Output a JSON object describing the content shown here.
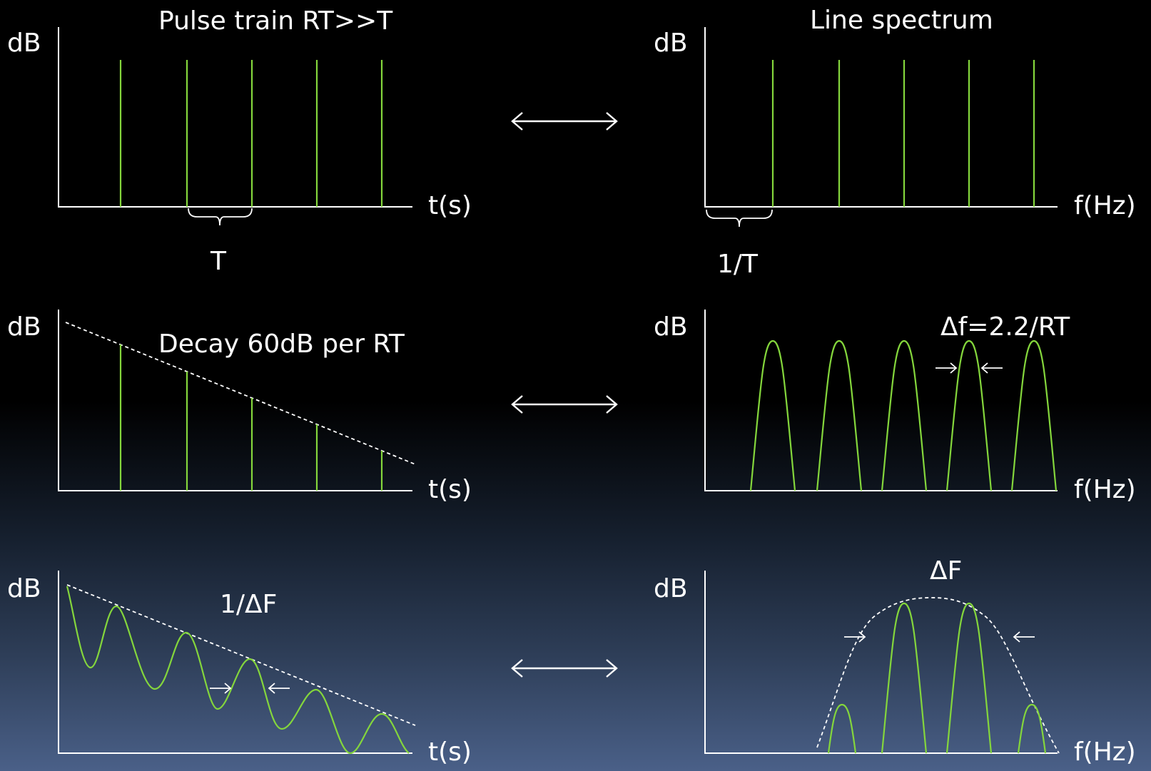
{
  "panels": {
    "pulse_train": {
      "title": "Pulse train RT>>T",
      "y_label": "dB",
      "x_label": "t(s)",
      "period_label": "T"
    },
    "line_spectrum": {
      "title": "Line spectrum",
      "y_label": "dB",
      "x_label": "f(Hz)",
      "spacing_label": "1/T"
    },
    "decay": {
      "title": "Decay 60dB per RT",
      "y_label": "dB",
      "x_label": "t(s)"
    },
    "mode_spectrum": {
      "title": "Δf=2.2/RT",
      "y_label": "dB",
      "x_label": "f(Hz)"
    },
    "beating": {
      "title": "1/ΔF",
      "y_label": "dB",
      "x_label": "t(s)"
    },
    "band_spectrum": {
      "title": "ΔF",
      "y_label": "dB",
      "x_label": "f(Hz)"
    }
  },
  "colors": {
    "line": "#84d63c",
    "axis": "#ffffff",
    "text": "#ffffff"
  }
}
